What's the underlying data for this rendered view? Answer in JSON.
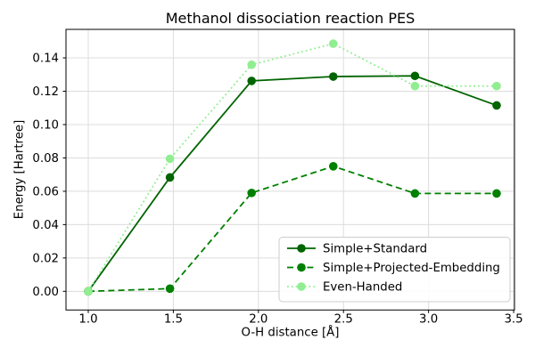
{
  "chart_data": {
    "type": "line",
    "title": "Methanol dissociation reaction PES",
    "xlabel": "O-H distance [Å]",
    "ylabel": "Energy [Hartree]",
    "x": [
      1.0,
      1.48,
      1.96,
      2.44,
      2.92,
      3.4
    ],
    "series": [
      {
        "name": "Simple+Standard",
        "values": [
          0.0,
          0.0683,
          0.1262,
          0.1288,
          0.1292,
          0.1115
        ],
        "color": "#006400",
        "linestyle": "solid",
        "marker": "circle"
      },
      {
        "name": "Simple+Projected-Embedding",
        "values": [
          0.0,
          0.0016,
          0.059,
          0.075,
          0.0587,
          0.0587
        ],
        "color": "#008000",
        "linestyle": "dashed",
        "marker": "circle"
      },
      {
        "name": "Even-Handed",
        "values": [
          0.0,
          0.0795,
          0.1359,
          0.1485,
          0.1231,
          0.1231
        ],
        "color": "#90EE90",
        "linestyle": "dotted",
        "marker": "circle"
      }
    ],
    "xticks": [
      1.0,
      1.5,
      2.0,
      2.5,
      3.0,
      3.5
    ],
    "xtick_labels": [
      "1.0",
      "1.5",
      "2.0",
      "2.5",
      "3.0",
      "3.5"
    ],
    "yticks": [
      0.0,
      0.02,
      0.04,
      0.06,
      0.08,
      0.1,
      0.12,
      0.14
    ],
    "ytick_labels": [
      "0.00",
      "0.02",
      "0.04",
      "0.06",
      "0.08",
      "0.10",
      "0.12",
      "0.14"
    ],
    "xlim": [
      0.869,
      3.505
    ],
    "ylim": [
      -0.0112,
      0.1571
    ],
    "grid": true,
    "legend_position": "lower right",
    "colors": {
      "background": "#ffffff",
      "grid": "#dcdcdc",
      "spine": "#000000",
      "tick": "#000000",
      "legend_edge": "#cccccc",
      "legend_fill": "#ffffff"
    }
  }
}
